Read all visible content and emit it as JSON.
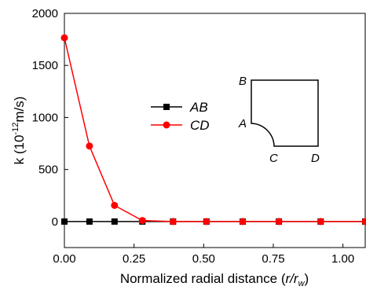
{
  "chart_data": {
    "type": "line",
    "title": "",
    "xlabel": "Normalized radial distance (r/rw)",
    "xlabel_parts": {
      "prefix": "Normalized radial distance (",
      "var": "r/r",
      "sub": "w",
      "suffix": ")"
    },
    "ylabel": "k (10-12m/s)",
    "ylabel_parts": {
      "prefix": "k (10",
      "sup": "-12",
      "suffix": "m/s)"
    },
    "xlim": [
      0.0,
      1.08
    ],
    "ylim": [
      -250,
      2000
    ],
    "x_ticks": [
      0.0,
      0.25,
      0.5,
      0.75,
      1.0
    ],
    "x_tick_labels": [
      "0.00",
      "0.25",
      "0.50",
      "0.75",
      "1.00"
    ],
    "y_ticks": [
      0,
      500,
      1000,
      1500,
      2000
    ],
    "y_tick_labels": [
      "0",
      "500",
      "1000",
      "1500",
      "2000"
    ],
    "grid": false,
    "legend_position": "center",
    "series": [
      {
        "name": "AB",
        "color": "#000000",
        "marker": "square",
        "x": [
          0.0,
          0.09,
          0.18,
          0.28,
          0.39,
          0.51,
          0.64,
          0.77,
          0.92,
          1.08
        ],
        "y": [
          0,
          0,
          0,
          0,
          0,
          0,
          0,
          0,
          0,
          0
        ]
      },
      {
        "name": "CD",
        "color": "#ff0000",
        "marker": "circle",
        "x": [
          0.0,
          0.09,
          0.18,
          0.28,
          0.39,
          0.51,
          0.64,
          0.77,
          0.92,
          1.08
        ],
        "y": [
          1765,
          725,
          155,
          10,
          0,
          0,
          0,
          0,
          0,
          0
        ]
      }
    ],
    "inset": {
      "labels": {
        "A": "A",
        "B": "B",
        "C": "C",
        "D": "D"
      }
    }
  }
}
